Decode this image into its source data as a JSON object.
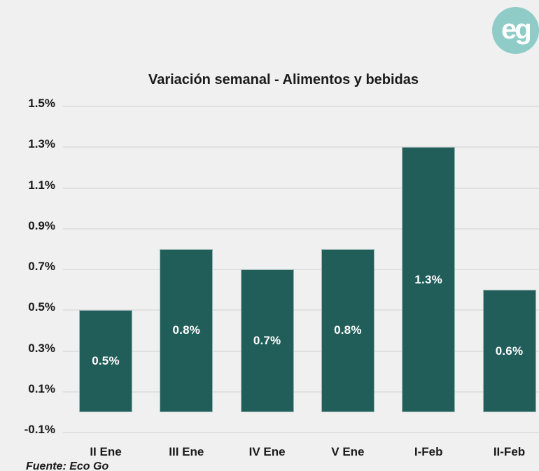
{
  "page": {
    "background": "#f0f0f0"
  },
  "logo": {
    "text": "eg",
    "circle_color": "#8fcbc7",
    "text_color": "#ffffff"
  },
  "chart_data": {
    "type": "bar",
    "title": "Variación semanal - Alimentos y bebidas",
    "categories": [
      "II Ene",
      "III Ene",
      "IV Ene",
      "V Ene",
      "I-Feb",
      "II-Feb"
    ],
    "values": [
      0.5,
      0.8,
      0.7,
      0.8,
      1.3,
      0.6
    ],
    "bar_labels": [
      "0.5%",
      "0.8%",
      "0.7%",
      "0.8%",
      "1.3%",
      "0.6%"
    ],
    "xlabel": "",
    "ylabel": "",
    "ylim": [
      -0.1,
      1.5
    ],
    "y_ticks": [
      1.5,
      1.3,
      1.1,
      0.9,
      0.7,
      0.5,
      0.3,
      0.1,
      -0.1
    ],
    "y_tick_labels": [
      "1.5%",
      "1.3%",
      "1.1%",
      "0.9%",
      "0.7%",
      "0.5%",
      "0.3%",
      "0.1%",
      "-0.1%"
    ],
    "grid": true,
    "legend": false,
    "bar_color": "#215e5a",
    "grid_color": "#e0e0e0",
    "label_color": "#ffffff"
  },
  "source": {
    "text": "Fuente: Eco Go"
  }
}
